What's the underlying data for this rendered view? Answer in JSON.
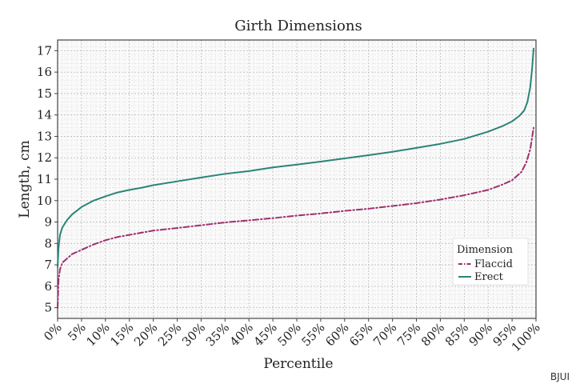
{
  "chart_data": {
    "type": "line",
    "title": "Girth Dimensions",
    "xlabel": "Percentile",
    "ylabel": "Length, cm",
    "xlim": [
      0,
      100
    ],
    "ylim": [
      4.5,
      17.5
    ],
    "x_ticks": [
      "0%",
      "5%",
      "10%",
      "15%",
      "20%",
      "25%",
      "30%",
      "35%",
      "40%",
      "45%",
      "50%",
      "55%",
      "60%",
      "65%",
      "70%",
      "75%",
      "80%",
      "85%",
      "90%",
      "95%",
      "100%"
    ],
    "y_ticks": [
      "5",
      "6",
      "7",
      "8",
      "9",
      "10",
      "11",
      "12",
      "13",
      "14",
      "15",
      "16",
      "17"
    ],
    "grid": true,
    "legend": {
      "title": "Dimension",
      "position": "bottom-right"
    },
    "series": [
      {
        "name": "Flaccid",
        "color": "#a0306e",
        "style": "dash-dot",
        "points": [
          [
            0,
            5.0
          ],
          [
            0.2,
            6.3
          ],
          [
            0.5,
            6.8
          ],
          [
            1,
            7.1
          ],
          [
            2,
            7.3
          ],
          [
            3,
            7.5
          ],
          [
            5,
            7.7
          ],
          [
            7.5,
            7.95
          ],
          [
            10,
            8.15
          ],
          [
            12.5,
            8.3
          ],
          [
            15,
            8.4
          ],
          [
            17.5,
            8.5
          ],
          [
            20,
            8.6
          ],
          [
            25,
            8.72
          ],
          [
            30,
            8.85
          ],
          [
            35,
            8.98
          ],
          [
            40,
            9.08
          ],
          [
            45,
            9.18
          ],
          [
            50,
            9.3
          ],
          [
            55,
            9.4
          ],
          [
            60,
            9.52
          ],
          [
            65,
            9.62
          ],
          [
            70,
            9.75
          ],
          [
            75,
            9.88
          ],
          [
            80,
            10.05
          ],
          [
            85,
            10.25
          ],
          [
            90,
            10.5
          ],
          [
            93,
            10.75
          ],
          [
            95,
            10.95
          ],
          [
            97,
            11.35
          ],
          [
            98,
            11.8
          ],
          [
            98.8,
            12.4
          ],
          [
            99.5,
            13.4
          ]
        ]
      },
      {
        "name": "Erect",
        "color": "#2a8478",
        "style": "solid",
        "points": [
          [
            0,
            6.9
          ],
          [
            0.2,
            7.8
          ],
          [
            0.5,
            8.4
          ],
          [
            1,
            8.75
          ],
          [
            2,
            9.1
          ],
          [
            3,
            9.35
          ],
          [
            5,
            9.7
          ],
          [
            7.5,
            10.0
          ],
          [
            10,
            10.2
          ],
          [
            12.5,
            10.38
          ],
          [
            15,
            10.5
          ],
          [
            17.5,
            10.6
          ],
          [
            20,
            10.72
          ],
          [
            25,
            10.9
          ],
          [
            30,
            11.08
          ],
          [
            35,
            11.25
          ],
          [
            40,
            11.38
          ],
          [
            45,
            11.55
          ],
          [
            50,
            11.68
          ],
          [
            55,
            11.82
          ],
          [
            60,
            11.97
          ],
          [
            65,
            12.12
          ],
          [
            70,
            12.28
          ],
          [
            75,
            12.46
          ],
          [
            80,
            12.65
          ],
          [
            85,
            12.88
          ],
          [
            90,
            13.22
          ],
          [
            93,
            13.48
          ],
          [
            95,
            13.7
          ],
          [
            96.5,
            13.95
          ],
          [
            97.5,
            14.2
          ],
          [
            98.2,
            14.6
          ],
          [
            98.8,
            15.3
          ],
          [
            99.2,
            16.2
          ],
          [
            99.5,
            17.1
          ]
        ]
      }
    ]
  },
  "watermark": "BJUI"
}
